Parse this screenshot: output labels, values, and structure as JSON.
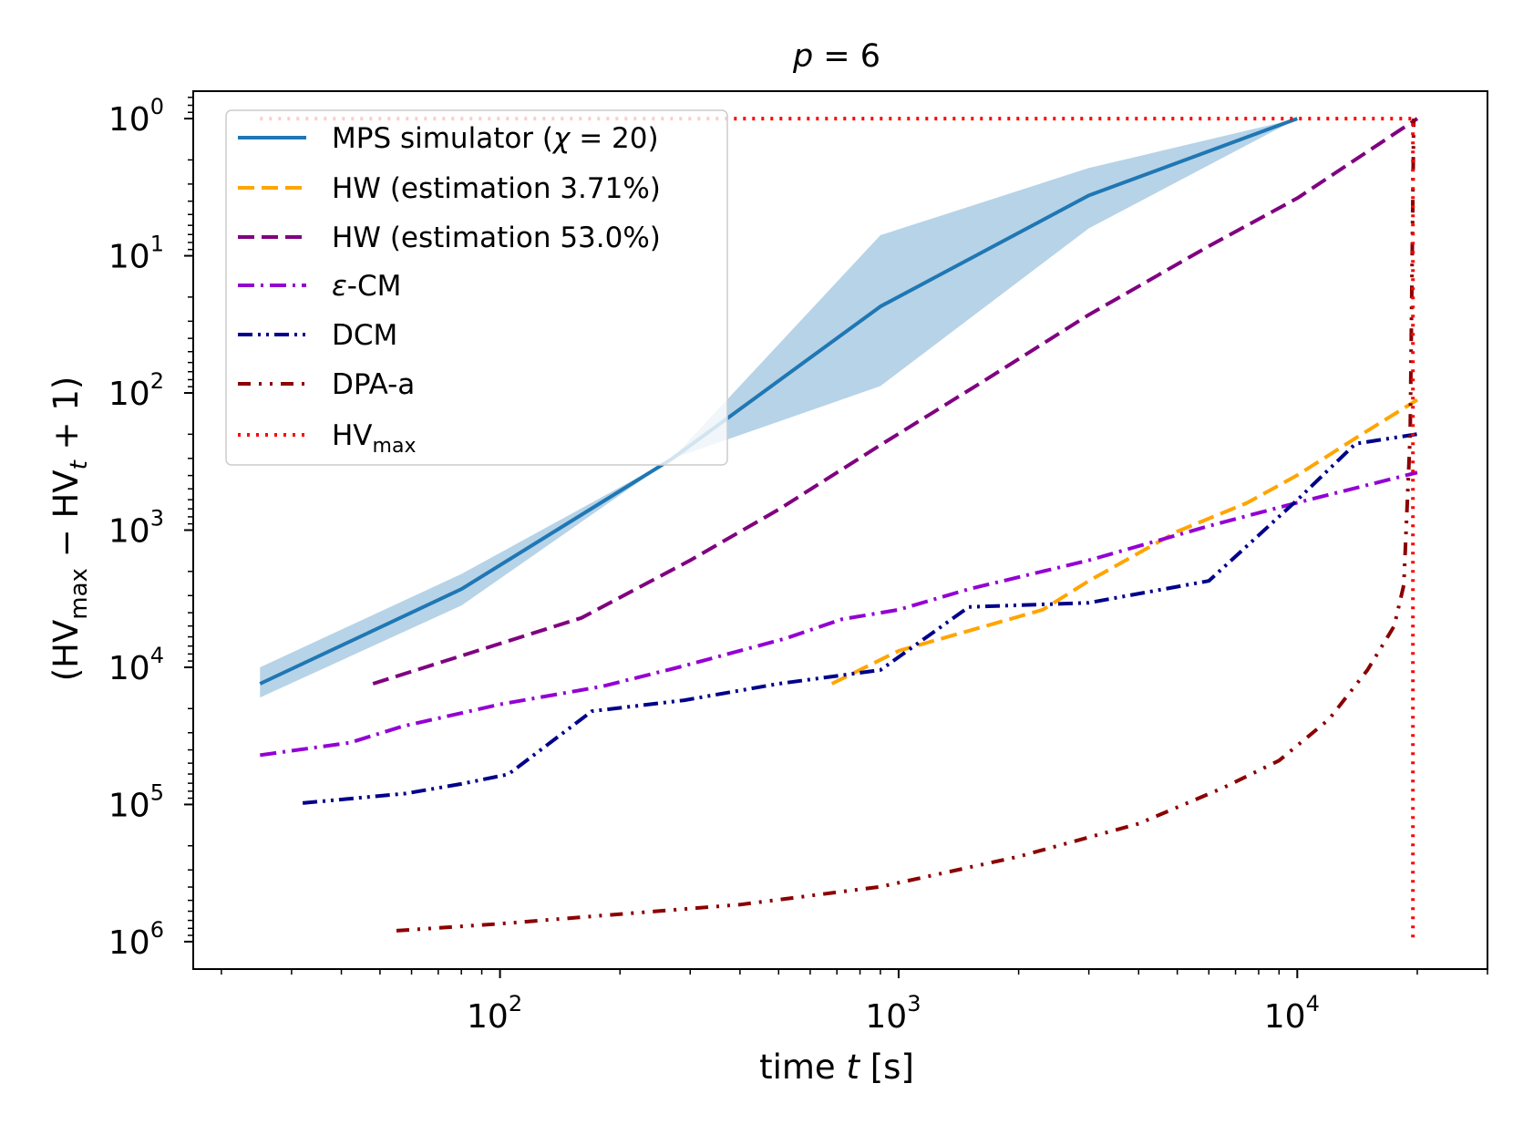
{
  "chart_data": {
    "type": "line",
    "title": {
      "italic": "p",
      "rest": " = 6"
    },
    "xlabel": {
      "pre": "time ",
      "italic": "t",
      "post": " [s]"
    },
    "ylabel": "(HVmax − HVt + 1)",
    "x_scale": "log",
    "y_scale": "log",
    "xlim": [
      17,
      30000
    ],
    "ylim_log10_exponent": [
      -0.2,
      6.2
    ],
    "y_axis_inverted": true,
    "x_tick_labels": [
      {
        "value": 100,
        "base": "10",
        "exp": "2"
      },
      {
        "value": 1000,
        "base": "10",
        "exp": "3"
      },
      {
        "value": 10000,
        "base": "10",
        "exp": "4"
      }
    ],
    "y_tick_labels": [
      {
        "value": 0,
        "base": "10",
        "exp": "0"
      },
      {
        "value": 1,
        "base": "10",
        "exp": "1"
      },
      {
        "value": 2,
        "base": "10",
        "exp": "2"
      },
      {
        "value": 3,
        "base": "10",
        "exp": "3"
      },
      {
        "value": 4,
        "base": "10",
        "exp": "4"
      },
      {
        "value": 5,
        "base": "10",
        "exp": "5"
      },
      {
        "value": 6,
        "base": "10",
        "exp": "6"
      }
    ],
    "legend_position": "top-left",
    "series": [
      {
        "name": "MPS simulator (χ = 20)",
        "legend_label": {
          "text": "MPS simulator (",
          "italic": "χ",
          "rest": " = 20)"
        },
        "color": "#1f77b4",
        "style": "solid",
        "x": [
          25,
          80,
          270,
          900,
          3000,
          10000
        ],
        "y": [
          4.12,
          3.43,
          2.48,
          1.37,
          0.56,
          0.0
        ],
        "band": {
          "color": "#1f77b4",
          "opacity": 0.32,
          "x": [
            25,
            80,
            270,
            900,
            3000,
            10000
          ],
          "y_upper": [
            4.0,
            3.32,
            2.48,
            0.85,
            0.36,
            0.0
          ],
          "y_lower": [
            4.22,
            3.55,
            2.48,
            1.95,
            0.8,
            0.0
          ]
        }
      },
      {
        "name": "HW (estimation 3.71%)",
        "legend_label": {
          "text": "HW (estimation 3.71%)"
        },
        "color": "#ffa500",
        "style": "dashed",
        "x": [
          680,
          1000,
          2300,
          3000,
          5000,
          7500,
          10000,
          14000,
          20000
        ],
        "y": [
          4.12,
          3.88,
          3.58,
          3.37,
          3.01,
          2.8,
          2.6,
          2.33,
          2.05
        ]
      },
      {
        "name": "HW (estimation 53.0%)",
        "legend_label": {
          "text": "HW (estimation 53.0%)"
        },
        "color": "#800080",
        "style": "dashed",
        "x": [
          48,
          160,
          300,
          500,
          900,
          1600,
          3000,
          6000,
          10000,
          20000
        ],
        "y": [
          4.12,
          3.64,
          3.22,
          2.85,
          2.38,
          1.93,
          1.43,
          0.93,
          0.58,
          0.0
        ]
      },
      {
        "name": "ε-CM",
        "legend_label": {
          "text": "-CM",
          "italic_prefix": "ε"
        },
        "color": "#9400d3",
        "style": "dashdot",
        "x": [
          25,
          42,
          57,
          100,
          180,
          280,
          520,
          720,
          1000,
          1500,
          3000,
          6000,
          10000,
          20000
        ],
        "y": [
          4.64,
          4.55,
          4.43,
          4.27,
          4.14,
          4.0,
          3.79,
          3.65,
          3.58,
          3.43,
          3.22,
          2.97,
          2.8,
          2.58
        ]
      },
      {
        "name": "DCM",
        "legend_label": {
          "text": "DCM"
        },
        "color": "#00008b",
        "style": "dashdotdot",
        "x": [
          32,
          58,
          80,
          105,
          170,
          290,
          500,
          900,
          1500,
          3000,
          6000,
          10000,
          14000,
          20000
        ],
        "y": [
          4.99,
          4.92,
          4.85,
          4.78,
          4.32,
          4.24,
          4.12,
          4.02,
          3.56,
          3.53,
          3.37,
          2.78,
          2.37,
          2.3
        ]
      },
      {
        "name": "DPA-a",
        "legend_label": {
          "text": "DPA-a"
        },
        "color": "#8b0000",
        "style": "dashdotdotsparse",
        "x": [
          55,
          100,
          180,
          400,
          900,
          2000,
          4000,
          6500,
          9000,
          12000,
          15000,
          17500,
          18500,
          19200,
          19600
        ],
        "y": [
          5.92,
          5.87,
          5.81,
          5.73,
          5.6,
          5.38,
          5.14,
          4.88,
          4.68,
          4.38,
          4.02,
          3.7,
          3.4,
          2.3,
          0.0
        ]
      },
      {
        "name": "HVmax",
        "legend_label": {
          "text": "HV",
          "sub": "max"
        },
        "color": "#ff0000",
        "style": "dotted",
        "x": [
          25,
          19500,
          19500
        ],
        "y": [
          0.0,
          0.0,
          6.0
        ]
      }
    ]
  }
}
